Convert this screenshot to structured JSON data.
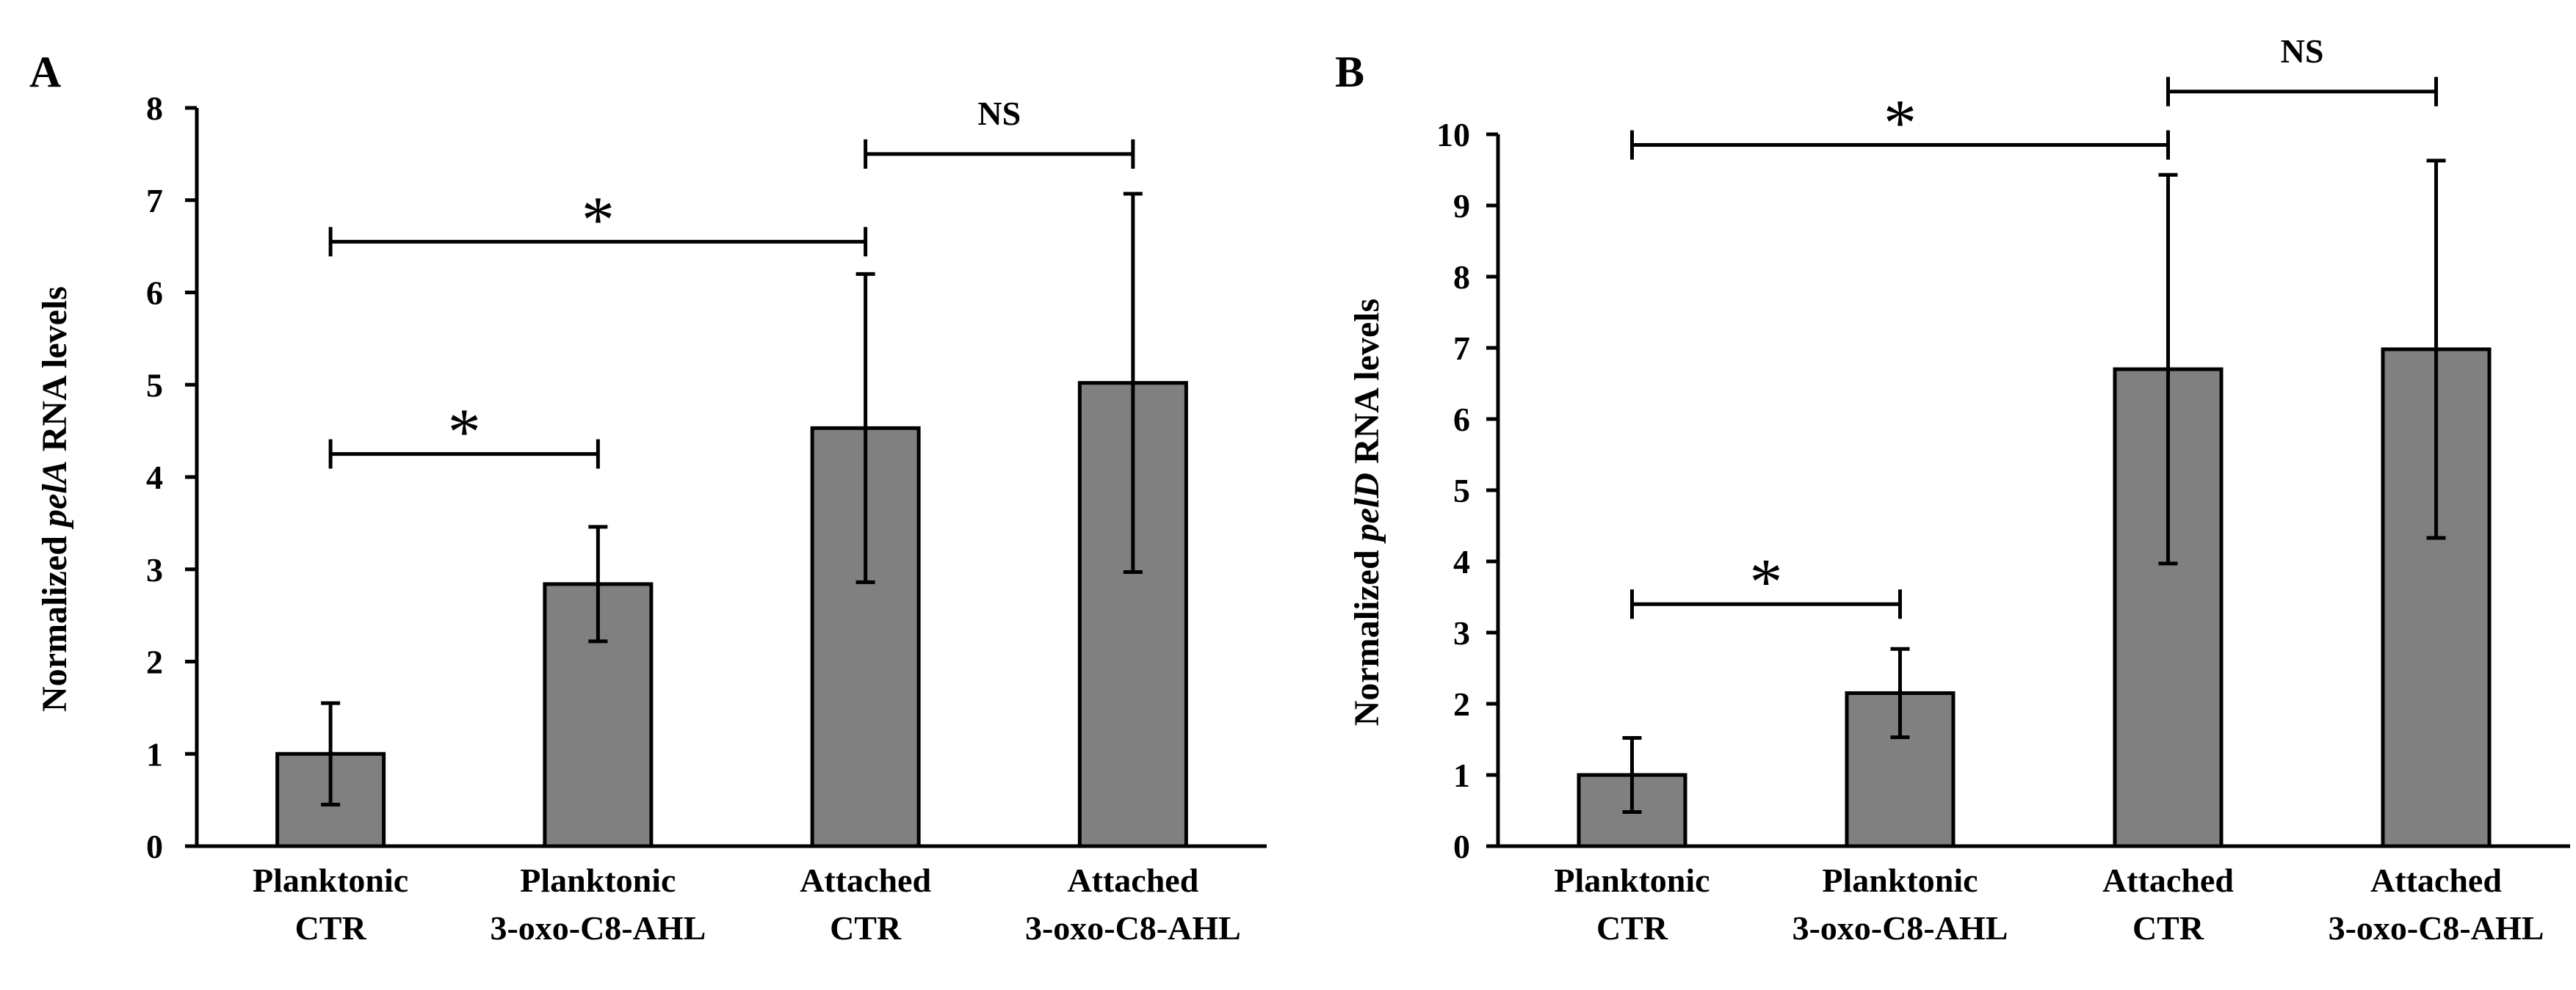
{
  "chart_data": [
    {
      "panel": "A",
      "type": "bar",
      "title": "",
      "ylabel_prefix": "Normalized ",
      "ylabel_gene": "pelA",
      "ylabel_suffix": " RNA levels",
      "xlabel": "",
      "ylim": [
        0,
        8
      ],
      "yticks": [
        0,
        1,
        2,
        3,
        4,
        5,
        6,
        7,
        8
      ],
      "grid": false,
      "bar_color": "#808080",
      "categories": [
        [
          "Planktonic",
          "CTR"
        ],
        [
          "Planktonic",
          "3-oxo-C8-AHL"
        ],
        [
          "Attached",
          "CTR"
        ],
        [
          "Attached",
          "3-oxo-C8-AHL"
        ]
      ],
      "values": [
        1.0,
        2.84,
        4.53,
        5.02
      ],
      "errors": [
        0.55,
        0.62,
        1.67,
        2.05
      ],
      "annotations": [
        {
          "from": 0,
          "to": 1,
          "y": 4.25,
          "label": "*"
        },
        {
          "from": 0,
          "to": 2,
          "y": 6.55,
          "label": "*"
        },
        {
          "from": 2,
          "to": 3,
          "y": 7.5,
          "label": "NS"
        }
      ]
    },
    {
      "panel": "B",
      "type": "bar",
      "title": "",
      "ylabel_prefix": "Normalized ",
      "ylabel_gene": "pelD",
      "ylabel_suffix": " RNA levels",
      "xlabel": "",
      "ylim": [
        0,
        10
      ],
      "yticks": [
        0,
        1,
        2,
        3,
        4,
        5,
        6,
        7,
        8,
        9,
        10
      ],
      "grid": false,
      "bar_color": "#808080",
      "categories": [
        [
          "Planktonic",
          "CTR"
        ],
        [
          "Planktonic",
          "3-oxo-C8-AHL"
        ],
        [
          "Attached",
          "CTR"
        ],
        [
          "Attached",
          "3-oxo-C8-AHL"
        ]
      ],
      "values": [
        1.0,
        2.15,
        6.7,
        6.98
      ],
      "errors": [
        0.52,
        0.62,
        2.73,
        2.65
      ],
      "annotations": [
        {
          "from": 0,
          "to": 1,
          "y": 3.4,
          "label": "*"
        },
        {
          "from": 0,
          "to": 2,
          "y": 9.85,
          "label": "*"
        },
        {
          "from": 2,
          "to": 3,
          "y": 10.6,
          "label": "NS"
        }
      ]
    }
  ]
}
